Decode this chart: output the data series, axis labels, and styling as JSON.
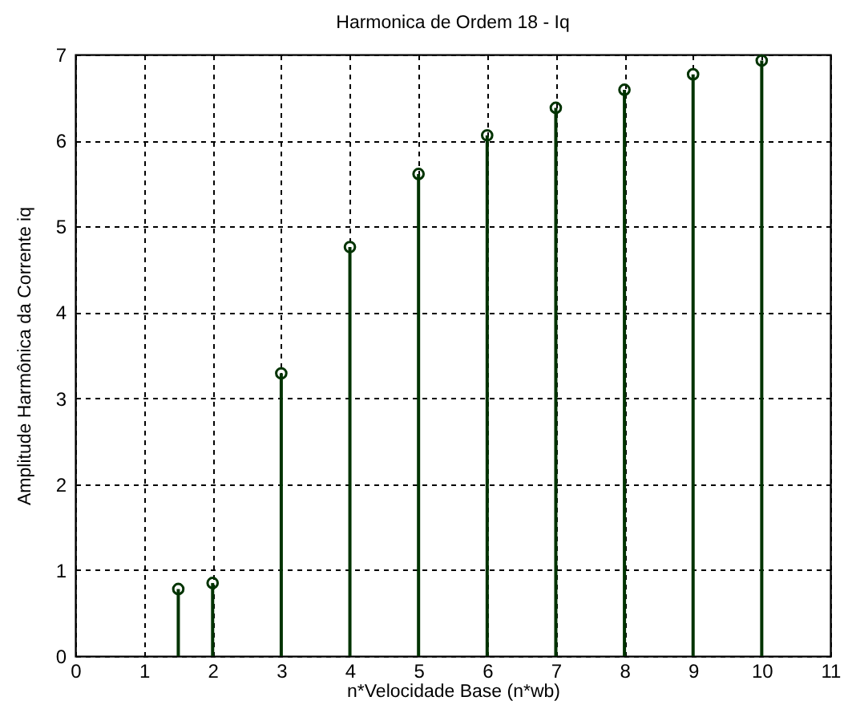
{
  "chart_data": {
    "type": "lollipop",
    "title": "Harmonica de Ordem 18 - Iq",
    "xlabel": "n*Velocidade Base   (n*wb)",
    "ylabel": "Amplitude Harmônica da Corrente iq",
    "x": [
      1.5,
      2,
      3,
      4,
      5,
      6,
      7,
      8,
      9,
      10
    ],
    "values": [
      0.78,
      0.85,
      3.29,
      4.76,
      5.61,
      6.06,
      6.38,
      6.59,
      6.77,
      6.93
    ],
    "color": "#003300",
    "xlim": [
      0,
      11
    ],
    "xticks": [
      0,
      1,
      2,
      3,
      4,
      5,
      6,
      7,
      8,
      9,
      10,
      11
    ],
    "ylim": [
      0,
      7
    ],
    "yticks": [
      0,
      1,
      2,
      3,
      4,
      5,
      6,
      7
    ],
    "grid": true,
    "marker": "circle"
  }
}
